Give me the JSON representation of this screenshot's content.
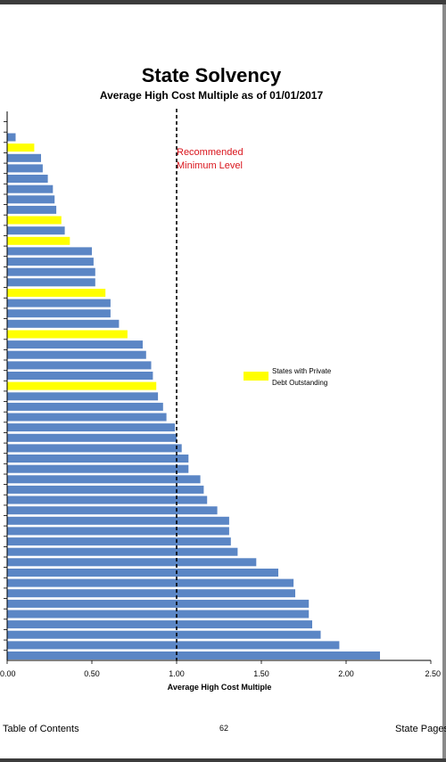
{
  "page": {
    "footer_left": "Table of Contents",
    "page_number": "62",
    "footer_right": "State Pages"
  },
  "chart_data": {
    "type": "bar",
    "orientation": "horizontal",
    "title": "State Solvency",
    "subtitle": "Average High Cost Multiple as of 01/01/2017",
    "xlabel": "Average High Cost Multiple",
    "xlim": [
      0,
      2.5
    ],
    "x_ticks": [
      "0.00",
      "0.50",
      "1.00",
      "1.50",
      "2.00",
      "2.50"
    ],
    "reference_line": {
      "value": 1.0,
      "label_line1": "Recommended",
      "label_line2": "Minimum Level",
      "color": "#d9141c"
    },
    "legend": {
      "label_line1": "States with Private",
      "label_line2": "Debt Outstanding",
      "color": "#ffff00",
      "position": "right"
    },
    "colors": {
      "default": "#5b86c5",
      "private_debt": "#ffff00"
    },
    "values": [
      0.05,
      0.16,
      0.2,
      0.21,
      0.24,
      0.27,
      0.28,
      0.29,
      0.32,
      0.34,
      0.37,
      0.5,
      0.51,
      0.52,
      0.52,
      0.58,
      0.61,
      0.61,
      0.66,
      0.71,
      0.8,
      0.82,
      0.85,
      0.86,
      0.88,
      0.89,
      0.92,
      0.94,
      0.99,
      1.0,
      1.03,
      1.07,
      1.07,
      1.14,
      1.16,
      1.18,
      1.24,
      1.31,
      1.31,
      1.32,
      1.36,
      1.47,
      1.6,
      1.69,
      1.7,
      1.78,
      1.78,
      1.8,
      1.85,
      1.96,
      2.2
    ],
    "private_debt": [
      false,
      true,
      false,
      false,
      false,
      false,
      false,
      false,
      true,
      false,
      true,
      false,
      false,
      false,
      false,
      true,
      false,
      false,
      false,
      true,
      false,
      false,
      false,
      false,
      true,
      false,
      false,
      false,
      false,
      false,
      false,
      false,
      false,
      false,
      false,
      false,
      false,
      false,
      false,
      false,
      false,
      false,
      false,
      false,
      false,
      false,
      false,
      false,
      false,
      false,
      false
    ]
  }
}
